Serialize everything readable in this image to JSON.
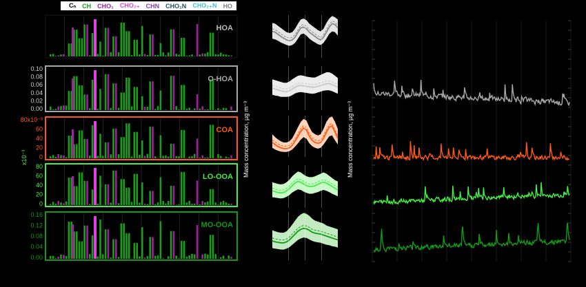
{
  "legend": {
    "items": [
      {
        "label": "Cₙ",
        "color": "#000000"
      },
      {
        "label": "CH",
        "color": "#1a9e1a"
      },
      {
        "label": "CHO₁",
        "color": "#a020a0"
      },
      {
        "label": "CHO₂₊",
        "color": "#e040e0"
      },
      {
        "label": "CHN",
        "color": "#8a3ab9"
      },
      {
        "label": "CHO₁N",
        "color": "#1f4e5f"
      },
      {
        "label": "CHO₂₊N",
        "color": "#40c0e0"
      },
      {
        "label": "HO",
        "color": "#808080"
      }
    ]
  },
  "colors": {
    "HOA": "#a8a8a8",
    "O-HOA": "#a8a8a8",
    "COA": "#ff5a14",
    "LO-OOA": "#44ee44",
    "MO-OOA": "#129a12",
    "bar_green": "#1a9e1a",
    "bar_purple": "#a020a0",
    "bar_magenta": "#e040e0"
  },
  "mid_axis_label": "Mass concentration, µg m⁻³",
  "right_axis_label": "Mass concentration, µg m⁻³",
  "chart_data": [
    {
      "type": "bar",
      "id": "spectra",
      "factors": [
        {
          "name": "HOA",
          "ticks": [],
          "scale": ""
        },
        {
          "name": "O-HOA",
          "ticks": [
            "0.10",
            "0.08",
            "0.06",
            "0.04",
            "0.02",
            "0.00"
          ],
          "ylim": [
            0,
            0.1
          ],
          "scale": ""
        },
        {
          "name": "COA",
          "ticks": [
            "80x10⁻³",
            "60",
            "40",
            "20",
            "0"
          ],
          "ylim": [
            0,
            80
          ],
          "scale": "x10⁻³"
        },
        {
          "name": "LO-OOA",
          "ticks": [
            "80",
            "60",
            "40",
            "20",
            "0"
          ],
          "ylim": [
            0,
            80
          ],
          "scale": ""
        },
        {
          "name": "MO-OOA",
          "ticks": [
            "0.16",
            "0.12",
            "0.08",
            "0.04",
            "0.00"
          ],
          "ylim": [
            0,
            0.16
          ],
          "scale": ""
        }
      ],
      "shared_scale_label": "x10⁻³"
    },
    {
      "type": "area",
      "id": "diurnal",
      "series": [
        {
          "name": "HOA",
          "median": [
            0.62,
            0.6,
            0.55,
            0.5,
            0.46,
            0.42,
            0.4,
            0.42,
            0.48,
            0.6,
            0.7,
            0.72,
            0.68,
            0.6,
            0.55,
            0.5,
            0.45,
            0.42,
            0.48,
            0.6,
            0.72,
            0.8,
            0.78,
            0.7
          ],
          "q25": [
            0.45,
            0.43,
            0.4,
            0.36,
            0.33,
            0.3,
            0.28,
            0.3,
            0.35,
            0.45,
            0.55,
            0.57,
            0.52,
            0.45,
            0.4,
            0.36,
            0.32,
            0.3,
            0.35,
            0.45,
            0.56,
            0.62,
            0.6,
            0.52
          ],
          "q75": [
            0.82,
            0.8,
            0.75,
            0.7,
            0.65,
            0.6,
            0.58,
            0.6,
            0.68,
            0.8,
            0.9,
            0.92,
            0.88,
            0.8,
            0.75,
            0.7,
            0.65,
            0.62,
            0.68,
            0.82,
            0.92,
            0.98,
            0.95,
            0.9
          ]
        },
        {
          "name": "O-HOA",
          "median": [
            0.5,
            0.48,
            0.46,
            0.44,
            0.42,
            0.42,
            0.44,
            0.48,
            0.52,
            0.55,
            0.56,
            0.55,
            0.54,
            0.53,
            0.52,
            0.52,
            0.54,
            0.56,
            0.58,
            0.6,
            0.6,
            0.58,
            0.55,
            0.52
          ],
          "q25": [
            0.35,
            0.33,
            0.32,
            0.3,
            0.3,
            0.3,
            0.31,
            0.34,
            0.38,
            0.4,
            0.41,
            0.4,
            0.39,
            0.38,
            0.37,
            0.38,
            0.4,
            0.42,
            0.44,
            0.45,
            0.45,
            0.43,
            0.4,
            0.37
          ],
          "q75": [
            0.7,
            0.68,
            0.66,
            0.64,
            0.62,
            0.62,
            0.65,
            0.7,
            0.74,
            0.78,
            0.79,
            0.78,
            0.76,
            0.75,
            0.74,
            0.74,
            0.77,
            0.8,
            0.83,
            0.86,
            0.86,
            0.83,
            0.78,
            0.73
          ]
        },
        {
          "name": "COA",
          "median": [
            0.35,
            0.3,
            0.25,
            0.22,
            0.2,
            0.2,
            0.22,
            0.28,
            0.38,
            0.5,
            0.62,
            0.7,
            0.65,
            0.5,
            0.4,
            0.35,
            0.33,
            0.35,
            0.45,
            0.6,
            0.72,
            0.75,
            0.6,
            0.45
          ],
          "q25": [
            0.22,
            0.18,
            0.15,
            0.13,
            0.12,
            0.12,
            0.14,
            0.18,
            0.25,
            0.33,
            0.42,
            0.48,
            0.44,
            0.33,
            0.26,
            0.22,
            0.2,
            0.22,
            0.3,
            0.4,
            0.5,
            0.52,
            0.4,
            0.3
          ],
          "q75": [
            0.55,
            0.48,
            0.42,
            0.38,
            0.35,
            0.35,
            0.38,
            0.45,
            0.58,
            0.72,
            0.85,
            0.92,
            0.88,
            0.72,
            0.6,
            0.55,
            0.52,
            0.55,
            0.68,
            0.85,
            0.95,
            0.98,
            0.85,
            0.68
          ]
        },
        {
          "name": "LO-OOA",
          "median": [
            0.4,
            0.38,
            0.36,
            0.35,
            0.36,
            0.4,
            0.45,
            0.52,
            0.58,
            0.62,
            0.6,
            0.56,
            0.52,
            0.5,
            0.5,
            0.52,
            0.55,
            0.58,
            0.6,
            0.58,
            0.54,
            0.5,
            0.46,
            0.42
          ],
          "q25": [
            0.25,
            0.24,
            0.23,
            0.22,
            0.23,
            0.26,
            0.3,
            0.36,
            0.4,
            0.43,
            0.42,
            0.38,
            0.35,
            0.33,
            0.33,
            0.35,
            0.37,
            0.4,
            0.42,
            0.4,
            0.37,
            0.33,
            0.3,
            0.27
          ],
          "q75": [
            0.6,
            0.58,
            0.56,
            0.55,
            0.56,
            0.6,
            0.66,
            0.74,
            0.8,
            0.85,
            0.83,
            0.78,
            0.74,
            0.72,
            0.72,
            0.74,
            0.77,
            0.8,
            0.83,
            0.8,
            0.75,
            0.7,
            0.65,
            0.62
          ]
        },
        {
          "name": "MO-OOA",
          "median": [
            0.4,
            0.38,
            0.37,
            0.36,
            0.36,
            0.38,
            0.42,
            0.48,
            0.54,
            0.6,
            0.64,
            0.66,
            0.65,
            0.62,
            0.58,
            0.56,
            0.55,
            0.54,
            0.52,
            0.5,
            0.48,
            0.46,
            0.44,
            0.42
          ],
          "q25": [
            0.25,
            0.24,
            0.23,
            0.22,
            0.22,
            0.24,
            0.27,
            0.32,
            0.37,
            0.42,
            0.45,
            0.47,
            0.46,
            0.43,
            0.4,
            0.38,
            0.37,
            0.36,
            0.34,
            0.32,
            0.31,
            0.29,
            0.28,
            0.26
          ],
          "q75": [
            0.62,
            0.6,
            0.58,
            0.57,
            0.57,
            0.6,
            0.66,
            0.74,
            0.82,
            0.9,
            0.95,
            0.98,
            0.96,
            0.92,
            0.86,
            0.82,
            0.8,
            0.78,
            0.76,
            0.72,
            0.7,
            0.68,
            0.66,
            0.64
          ]
        }
      ]
    },
    {
      "type": "line",
      "id": "timeseries",
      "series": [
        {
          "name": "HOA"
        },
        {
          "name": "O-HOA"
        },
        {
          "name": "COA"
        },
        {
          "name": "LO-OOA"
        },
        {
          "name": "MO-OOA"
        }
      ]
    }
  ]
}
